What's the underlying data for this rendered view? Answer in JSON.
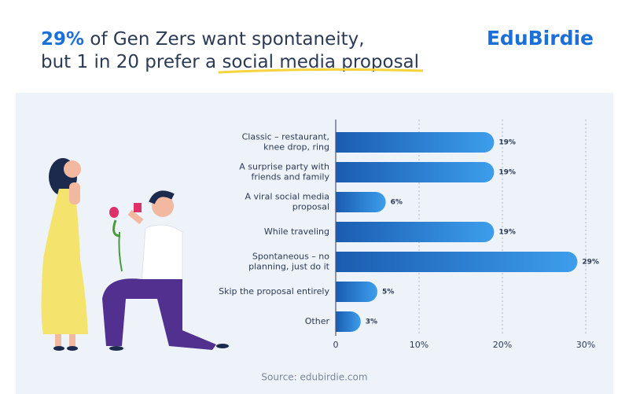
{
  "header": {
    "title": {
      "highlight": "29%",
      "line1": "of Gen Zers want spontaneity,",
      "line2": "but 1 in 20 prefer a",
      "underlined": "social media proposal"
    },
    "brand": "EduBirdie"
  },
  "chart_data": {
    "type": "bar",
    "orientation": "horizontal",
    "categories": [
      "Classic – restaurant,\nknee drop, ring",
      "A surprise party with\nfriends and family",
      "A viral social media\nproposal",
      "While traveling",
      "Spontaneous – no\nplanning, just do it",
      "Skip the proposal entirely",
      "Other"
    ],
    "values": [
      19,
      19,
      6,
      19,
      29,
      5,
      3
    ],
    "value_labels": [
      "19%",
      "19%",
      "6%",
      "19%",
      "29%",
      "5%",
      "3%"
    ],
    "color": [
      "#1a5cb0",
      "#3d9eec"
    ],
    "xlim": [
      0,
      30
    ],
    "xticks": [
      0,
      {
        "value": 10,
        "label": "10%"
      },
      {
        "value": 20,
        "label": "20%"
      },
      {
        "value": 30,
        "label": "30%"
      }
    ],
    "grid": true
  },
  "footer": {
    "source": "Source: edubirdie.com"
  }
}
